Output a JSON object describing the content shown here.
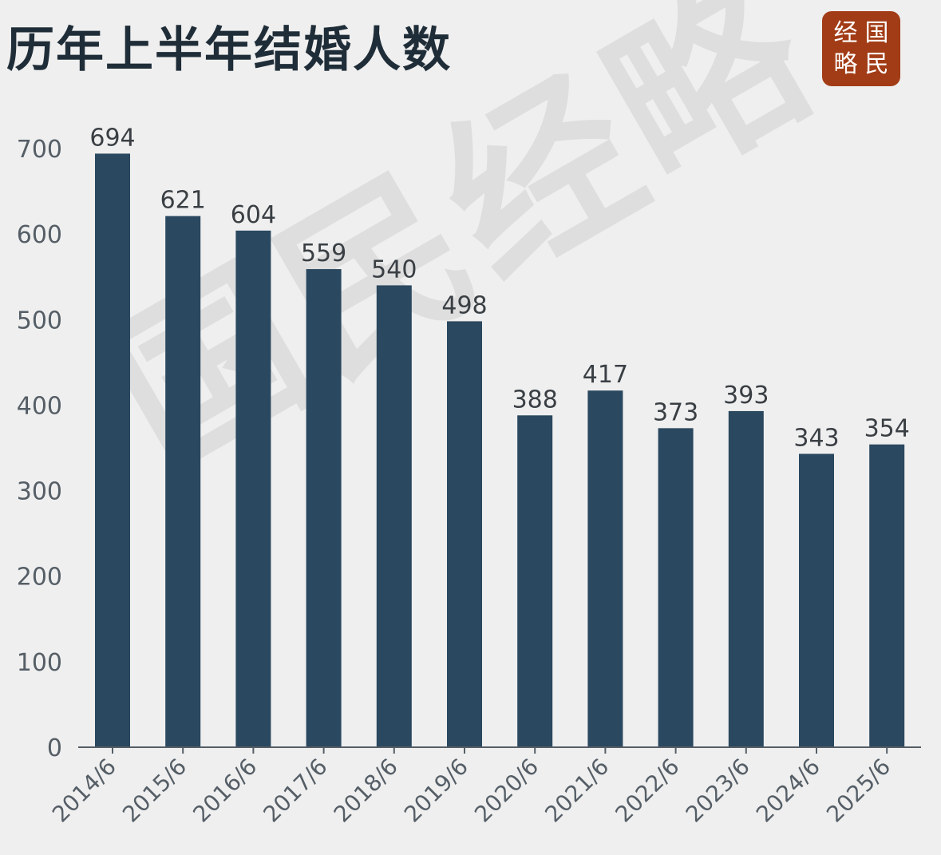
{
  "badge": {
    "chars": [
      "经",
      "国",
      "略",
      "民"
    ]
  },
  "watermark": "国民经略",
  "chart_data": {
    "type": "bar",
    "title": "历年上半年结婚人数",
    "categories": [
      "2014/6",
      "2015/6",
      "2016/6",
      "2017/6",
      "2018/6",
      "2019/6",
      "2020/6",
      "2021/6",
      "2022/6",
      "2023/6",
      "2024/6",
      "2025/6"
    ],
    "values": [
      694,
      621,
      604,
      559,
      540,
      498,
      388,
      417,
      373,
      393,
      343,
      354
    ],
    "data_labels": [
      "694",
      "621",
      "604",
      "559",
      "540",
      "498",
      "388",
      "417",
      "373",
      "393",
      "343",
      "354"
    ],
    "yticks": [
      0,
      100,
      200,
      300,
      400,
      500,
      600,
      700
    ],
    "ylim": [
      0,
      700
    ],
    "xlabel": "",
    "ylabel": "",
    "grid": false,
    "legend": "none",
    "bar_color": "#2a485f"
  }
}
